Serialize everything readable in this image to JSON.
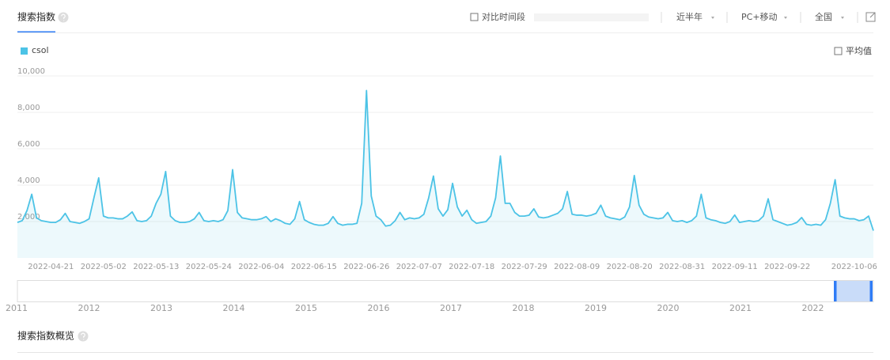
{
  "header": {
    "tab": "搜索指数",
    "compare": "对比时间段",
    "period": "近半年",
    "device": "PC+移动",
    "region": "全国",
    "average": "平均值"
  },
  "chart_data": {
    "type": "line",
    "grid": true,
    "area": true,
    "ylim": [
      0,
      10000
    ],
    "yticks": [
      {
        "value": 2000,
        "label": "2,000"
      },
      {
        "value": 4000,
        "label": "4,000"
      },
      {
        "value": 6000,
        "label": "6,000"
      },
      {
        "value": 8000,
        "label": "8,000"
      },
      {
        "value": 10000,
        "label": "10,000"
      }
    ],
    "categories": [
      null,
      null,
      null,
      null,
      null,
      null,
      null,
      "2022-04-21",
      null,
      null,
      null,
      null,
      null,
      null,
      null,
      null,
      null,
      null,
      "2022-05-02",
      null,
      null,
      null,
      null,
      null,
      null,
      null,
      null,
      null,
      null,
      "2022-05-13",
      null,
      null,
      null,
      null,
      null,
      null,
      null,
      null,
      null,
      null,
      "2022-05-24",
      null,
      null,
      null,
      null,
      null,
      null,
      null,
      null,
      null,
      null,
      "2022-06-04",
      null,
      null,
      null,
      null,
      null,
      null,
      null,
      null,
      null,
      null,
      "2022-06-15",
      null,
      null,
      null,
      null,
      null,
      null,
      null,
      null,
      null,
      null,
      "2022-06-26",
      null,
      null,
      null,
      null,
      null,
      null,
      null,
      null,
      null,
      null,
      "2022-07-07",
      null,
      null,
      null,
      null,
      null,
      null,
      null,
      null,
      null,
      null,
      "2022-07-18",
      null,
      null,
      null,
      null,
      null,
      null,
      null,
      null,
      null,
      null,
      "2022-07-29",
      null,
      null,
      null,
      null,
      null,
      null,
      null,
      null,
      null,
      null,
      "2022-08-09",
      null,
      null,
      null,
      null,
      null,
      null,
      null,
      null,
      null,
      null,
      "2022-08-20",
      null,
      null,
      null,
      null,
      null,
      null,
      null,
      null,
      null,
      null,
      "2022-08-31",
      null,
      null,
      null,
      null,
      null,
      null,
      null,
      null,
      null,
      null,
      "2022-09-11",
      null,
      null,
      null,
      null,
      null,
      null,
      null,
      null,
      null,
      null,
      "2022-09-22",
      null,
      null,
      null,
      null,
      null,
      null,
      null,
      null,
      null,
      null,
      null,
      null,
      null,
      "2022-10-06",
      null,
      null,
      null,
      null
    ],
    "series": [
      {
        "name": "csol",
        "color": "#4cc3e6",
        "values": [
          1950,
          2050,
          2600,
          3500,
          2200,
          2050,
          2000,
          1950,
          1950,
          2100,
          2450,
          2000,
          1950,
          1900,
          2000,
          2150,
          3300,
          4400,
          2300,
          2200,
          2200,
          2150,
          2150,
          2300,
          2530,
          2050,
          2000,
          2050,
          2300,
          3000,
          3500,
          4750,
          2300,
          2050,
          1950,
          1950,
          2000,
          2150,
          2500,
          2050,
          2000,
          2050,
          2000,
          2100,
          2600,
          4850,
          2500,
          2200,
          2150,
          2100,
          2100,
          2150,
          2270,
          2000,
          2150,
          2050,
          1900,
          1850,
          2150,
          3100,
          2100,
          1950,
          1850,
          1800,
          1800,
          1900,
          2270,
          1900,
          1800,
          1850,
          1850,
          1900,
          3000,
          9200,
          3400,
          2300,
          2100,
          1750,
          1800,
          2050,
          2500,
          2100,
          2200,
          2150,
          2200,
          2400,
          3300,
          4500,
          2700,
          2300,
          2650,
          4100,
          2800,
          2300,
          2620,
          2100,
          1900,
          1950,
          2000,
          2300,
          3300,
          5600,
          3000,
          3000,
          2500,
          2300,
          2300,
          2350,
          2700,
          2250,
          2200,
          2250,
          2350,
          2450,
          2700,
          3650,
          2400,
          2350,
          2350,
          2300,
          2350,
          2450,
          2900,
          2300,
          2200,
          2150,
          2100,
          2250,
          2800,
          4530,
          2900,
          2400,
          2250,
          2200,
          2150,
          2200,
          2500,
          2050,
          2000,
          2050,
          1950,
          2050,
          2300,
          3500,
          2200,
          2100,
          2050,
          1950,
          1900,
          2000,
          2360,
          1950,
          2000,
          2050,
          2000,
          2050,
          2300,
          3250,
          2100,
          2000,
          1900,
          1800,
          1850,
          1950,
          2220,
          1850,
          1800,
          1850,
          1800,
          2100,
          3000,
          4300,
          2300,
          2200,
          2150,
          2150,
          2050,
          2100,
          2300,
          1500
        ]
      }
    ]
  },
  "navigator": {
    "years": [
      "2011",
      "2012",
      "2013",
      "2014",
      "2015",
      "2016",
      "2017",
      "2018",
      "2019",
      "2020",
      "2021",
      "2022"
    ]
  },
  "overview": {
    "title": "搜索指数概览"
  }
}
